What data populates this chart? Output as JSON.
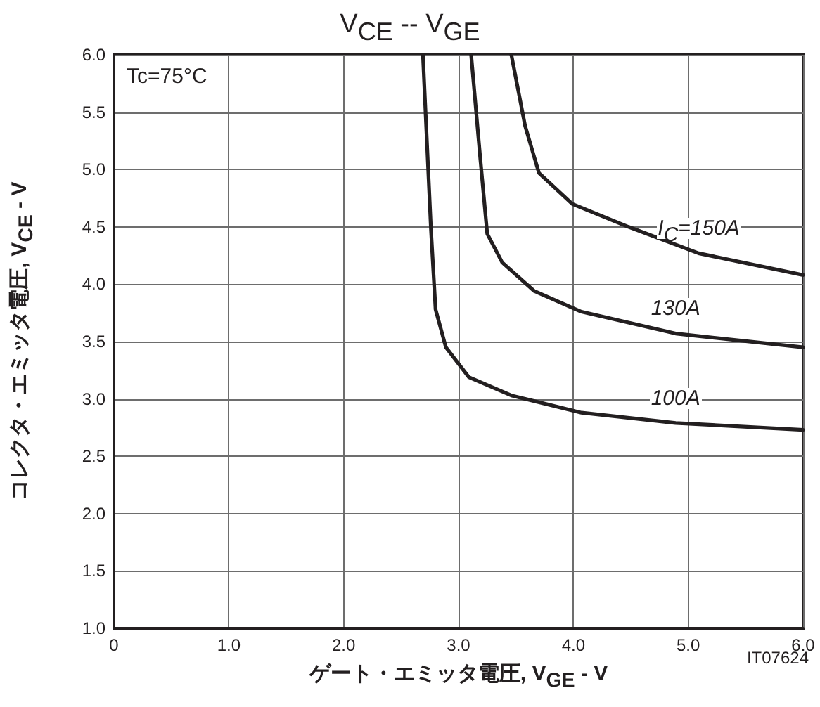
{
  "chart_data": {
    "type": "line",
    "title": "V$_{CE}$ -- V$_{GE}$",
    "xlabel": "ゲート・エミッタ電圧, V$_{GE}$ - V",
    "ylabel": "コレクタ・エミッタ電圧, V$_{CE}$ - V",
    "xlim": [
      0,
      6
    ],
    "ylim": [
      1,
      6
    ],
    "xticks": [
      0,
      {
        "value": 1,
        "label": "1.0"
      },
      {
        "value": 2,
        "label": "2.0"
      },
      {
        "value": 3,
        "label": "3.0"
      },
      {
        "value": 4,
        "label": "4.0"
      },
      {
        "value": 5,
        "label": "5.0"
      },
      {
        "value": 6,
        "label": "6.0"
      }
    ],
    "yticks": [
      {
        "value": 1,
        "label": "1.0"
      },
      1.5,
      {
        "value": 2,
        "label": "2.0"
      },
      2.5,
      {
        "value": 3,
        "label": "3.0"
      },
      3.5,
      {
        "value": 4,
        "label": "4.0"
      },
      4.5,
      {
        "value": 5,
        "label": "5.0"
      },
      5.5,
      {
        "value": 6,
        "label": "6.0"
      }
    ],
    "grid": true,
    "marker": "none",
    "line_style": "solid",
    "series": [
      {
        "name": "100A",
        "color": "#231f20",
        "x": [
          2.69,
          2.76,
          2.8,
          2.89,
          3.09,
          3.46,
          4.07,
          4.89,
          6.0
        ],
        "values": [
          6.0,
          4.48,
          3.78,
          3.45,
          3.19,
          3.03,
          2.88,
          2.79,
          2.73
        ]
      },
      {
        "name": "130A",
        "color": "#231f20",
        "x": [
          3.11,
          3.19,
          3.25,
          3.38,
          3.66,
          4.07,
          4.89,
          6.0
        ],
        "values": [
          6.0,
          5.09,
          4.44,
          4.19,
          3.94,
          3.76,
          3.57,
          3.45
        ]
      },
      {
        "name": "I$_{C}$=150A",
        "color": "#231f20",
        "x": [
          3.46,
          3.58,
          3.7,
          3.99,
          4.48,
          5.09,
          6.0
        ],
        "values": [
          6.0,
          5.38,
          4.97,
          4.7,
          4.5,
          4.27,
          4.08
        ]
      }
    ],
    "annotations": [
      "Tc=75°C",
      "IT07624"
    ]
  }
}
